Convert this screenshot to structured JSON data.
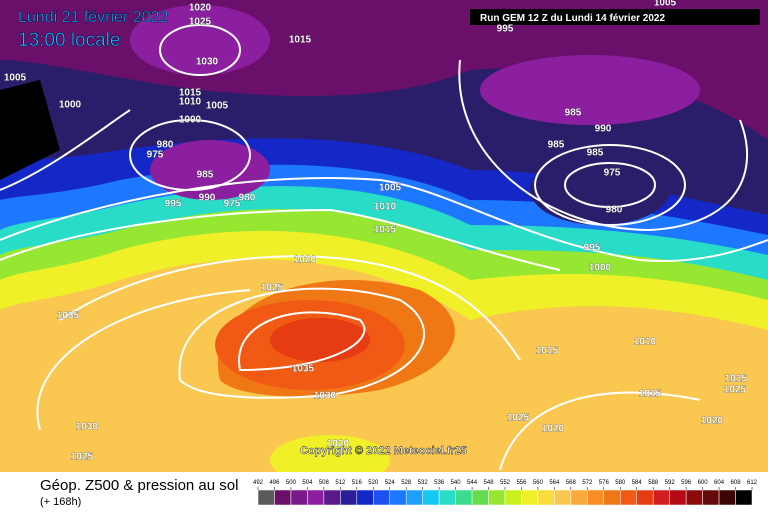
{
  "header": {
    "date": "Lundi 21 février 2022",
    "time": "13:00 locale",
    "run": "Run GEM 12 Z du Lundi 14 février 2022",
    "copyright": "Copyright © 2022 Meteociel.fr25"
  },
  "isobar_labels": [
    1020,
    1025,
    1030,
    1015,
    1005,
    1000,
    1015,
    1010,
    1005,
    1000,
    980,
    975,
    985,
    995,
    990,
    975,
    980,
    1005,
    1010,
    1015,
    1020,
    1025,
    1035,
    1035,
    1030,
    1030,
    1025,
    1020,
    995,
    1005,
    985,
    990,
    985,
    985,
    975,
    980,
    995,
    1000,
    1015,
    1010,
    1015,
    1015,
    1025,
    1025,
    1020,
    1020
  ],
  "footer": {
    "title": "Géop. Z500 & pression au sol",
    "lead": "(+ 168h)"
  },
  "colorbar": {
    "ticks": [
      492,
      496,
      500,
      504,
      508,
      512,
      516,
      520,
      524,
      528,
      532,
      536,
      540,
      544,
      548,
      552,
      556,
      560,
      564,
      568,
      572,
      576,
      580,
      584,
      588,
      592,
      596,
      600,
      604,
      608,
      612
    ],
    "colors": [
      "#5a5a5a",
      "#6a0f6a",
      "#7a1a8a",
      "#8c1ea0",
      "#5a1a8a",
      "#2a1e9a",
      "#1428c8",
      "#1e50f0",
      "#1e78ff",
      "#1ea0ff",
      "#14c8f0",
      "#28dcc8",
      "#3cdc8c",
      "#64dc50",
      "#96e632",
      "#c8f01e",
      "#f0f028",
      "#fadc3c",
      "#fac850",
      "#faaa3c",
      "#fa8c28",
      "#f07814",
      "#f05a14",
      "#e63c14",
      "#d21e1e",
      "#b40a14",
      "#8c0a0a",
      "#640a0a",
      "#3c0505",
      "#000000"
    ]
  }
}
